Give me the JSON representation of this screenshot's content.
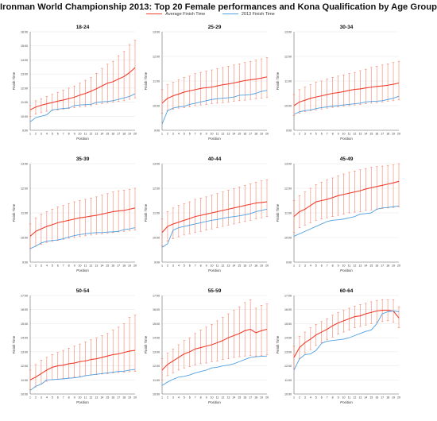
{
  "title": "Ironman World Championship 2013: Top 20 Female performances and Kona Qualification by Age Group",
  "legend": {
    "avg": "Average Finish Time",
    "fin": "2013 Finish Time"
  },
  "colors": {
    "avg": "#f03e2e",
    "fin": "#4f9fe0",
    "err": "#f4836a",
    "axis": "#666666",
    "grid": "#e6e6e6"
  },
  "chart_data": [
    {
      "type": "line",
      "title": "18-24",
      "xlabel": "Position",
      "ylabel": "Finish Time",
      "x": [
        1,
        2,
        3,
        4,
        5,
        6,
        7,
        8,
        9,
        10,
        11,
        12,
        13,
        14,
        15,
        16,
        17,
        18,
        19,
        20
      ],
      "yticks": [
        "9:00",
        "10:00",
        "11:00",
        "12:00",
        "13:00",
        "14:00",
        "15:00",
        "16:00"
      ],
      "ylim": [
        9,
        16
      ],
      "series": [
        {
          "name": "Average Finish Time",
          "values": [
            10.45,
            10.65,
            10.78,
            10.88,
            10.97,
            11.07,
            11.15,
            11.25,
            11.35,
            11.5,
            11.62,
            11.77,
            11.95,
            12.15,
            12.35,
            12.45,
            12.65,
            12.82,
            13.1,
            13.45
          ]
        },
        {
          "name": "2013 Finish Time",
          "values": [
            9.6,
            9.9,
            10.0,
            10.1,
            10.45,
            10.5,
            10.55,
            10.58,
            10.75,
            10.8,
            10.82,
            10.84,
            10.98,
            11.02,
            11.05,
            11.1,
            11.2,
            11.3,
            11.4,
            11.6
          ]
        }
      ],
      "error_low": [
        10.0,
        10.15,
        10.25,
        10.35,
        10.4,
        10.45,
        10.5,
        10.55,
        10.6,
        10.65,
        10.7,
        10.75,
        10.85,
        10.9,
        10.95,
        11.0,
        11.05,
        11.1,
        11.2,
        11.3
      ],
      "error_high": [
        10.75,
        11.1,
        11.25,
        11.4,
        11.55,
        11.7,
        11.85,
        12.0,
        12.15,
        12.35,
        12.55,
        12.75,
        13.05,
        13.4,
        13.7,
        13.9,
        14.3,
        14.6,
        15.1,
        15.4
      ]
    },
    {
      "type": "line",
      "title": "25-29",
      "xlabel": "Position",
      "ylabel": "Finish Time",
      "x": [
        1,
        2,
        3,
        4,
        5,
        6,
        7,
        8,
        9,
        10,
        11,
        12,
        13,
        14,
        15,
        16,
        17,
        18,
        19,
        20
      ],
      "yticks": [
        "9:00",
        "10:00",
        "11:00",
        "12:00",
        "13:00"
      ],
      "ylim": [
        9,
        13
      ],
      "series": [
        {
          "name": "Average Finish Time",
          "values": [
            10.1,
            10.3,
            10.4,
            10.47,
            10.55,
            10.6,
            10.65,
            10.7,
            10.73,
            10.75,
            10.8,
            10.85,
            10.88,
            10.92,
            10.97,
            11.02,
            11.05,
            11.08,
            11.12,
            11.17
          ]
        },
        {
          "name": "2013 Finish Time",
          "values": [
            9.25,
            9.8,
            9.9,
            9.95,
            9.97,
            10.05,
            10.1,
            10.15,
            10.2,
            10.25,
            10.28,
            10.3,
            10.32,
            10.35,
            10.42,
            10.43,
            10.45,
            10.5,
            10.58,
            10.62
          ]
        }
      ],
      "error_low": [
        9.7,
        9.8,
        9.85,
        9.9,
        9.92,
        9.95,
        10.0,
        10.03,
        10.05,
        10.08,
        10.1,
        10.12,
        10.15,
        10.18,
        10.2,
        10.22,
        10.25,
        10.28,
        10.3,
        10.33
      ],
      "error_high": [
        10.65,
        10.85,
        10.95,
        11.05,
        11.15,
        11.2,
        11.3,
        11.35,
        11.4,
        11.45,
        11.5,
        11.55,
        11.6,
        11.65,
        11.7,
        11.75,
        11.8,
        11.85,
        11.9,
        11.95
      ]
    },
    {
      "type": "line",
      "title": "30-34",
      "xlabel": "Position",
      "ylabel": "Finish Time",
      "x": [
        1,
        2,
        3,
        4,
        5,
        6,
        7,
        8,
        9,
        10,
        11,
        12,
        13,
        14,
        15,
        16,
        17,
        18,
        19,
        20
      ],
      "yticks": [
        "9:00",
        "10:00",
        "11:00",
        "12:00",
        "13:00"
      ],
      "ylim": [
        9,
        13
      ],
      "series": [
        {
          "name": "Average Finish Time",
          "values": [
            10.0,
            10.15,
            10.22,
            10.3,
            10.35,
            10.4,
            10.45,
            10.5,
            10.53,
            10.57,
            10.62,
            10.66,
            10.68,
            10.72,
            10.75,
            10.78,
            10.8,
            10.83,
            10.87,
            10.92
          ]
        },
        {
          "name": "2013 Finish Time",
          "values": [
            9.65,
            9.75,
            9.8,
            9.82,
            9.88,
            9.92,
            9.95,
            9.98,
            10.0,
            10.03,
            10.05,
            10.08,
            10.1,
            10.15,
            10.17,
            10.18,
            10.2,
            10.25,
            10.3,
            10.38
          ]
        }
      ],
      "error_low": [
        9.6,
        9.7,
        9.75,
        9.8,
        9.83,
        9.86,
        9.9,
        9.93,
        9.95,
        9.98,
        10.0,
        10.03,
        10.05,
        10.08,
        10.1,
        10.12,
        10.15,
        10.18,
        10.2,
        10.23
      ],
      "error_high": [
        10.45,
        10.65,
        10.75,
        10.85,
        10.95,
        11.0,
        11.08,
        11.15,
        11.2,
        11.25,
        11.3,
        11.35,
        11.42,
        11.48,
        11.55,
        11.6,
        11.65,
        11.7,
        11.75,
        11.8
      ]
    },
    {
      "type": "line",
      "title": "35-39",
      "xlabel": "Position",
      "ylabel": "Finish Time",
      "x": [
        1,
        2,
        3,
        4,
        5,
        6,
        7,
        8,
        9,
        10,
        11,
        12,
        13,
        14,
        15,
        16,
        17,
        18,
        19,
        20
      ],
      "yticks": [
        "9:00",
        "10:00",
        "11:00",
        "12:00",
        "13:00"
      ],
      "ylim": [
        9,
        13
      ],
      "series": [
        {
          "name": "Average Finish Time",
          "values": [
            10.05,
            10.25,
            10.35,
            10.45,
            10.52,
            10.6,
            10.65,
            10.7,
            10.75,
            10.8,
            10.83,
            10.87,
            10.9,
            10.95,
            11.0,
            11.05,
            11.08,
            11.1,
            11.15,
            11.2
          ]
        },
        {
          "name": "2013 Finish Time",
          "values": [
            9.55,
            9.65,
            9.78,
            9.85,
            9.88,
            9.9,
            9.95,
            10.02,
            10.08,
            10.12,
            10.15,
            10.18,
            10.2,
            10.2,
            10.22,
            10.23,
            10.25,
            10.32,
            10.35,
            10.4
          ]
        }
      ],
      "error_low": [
        9.55,
        9.65,
        9.72,
        9.8,
        9.84,
        9.88,
        9.93,
        9.97,
        10.0,
        10.04,
        10.07,
        10.1,
        10.13,
        10.15,
        10.18,
        10.2,
        10.23,
        10.25,
        10.28,
        10.3
      ],
      "error_high": [
        10.55,
        10.8,
        10.95,
        11.05,
        11.15,
        11.25,
        11.3,
        11.38,
        11.45,
        11.5,
        11.55,
        11.6,
        11.65,
        11.72,
        11.78,
        11.85,
        11.9,
        11.92,
        11.96,
        12.0
      ]
    },
    {
      "type": "line",
      "title": "40-44",
      "xlabel": "Position",
      "ylabel": "Finish Time",
      "x": [
        1,
        2,
        3,
        4,
        5,
        6,
        7,
        8,
        9,
        10,
        11,
        12,
        13,
        14,
        15,
        16,
        17,
        18,
        19,
        20
      ],
      "yticks": [
        "9:00",
        "10:00",
        "11:00",
        "12:00",
        "13:00"
      ],
      "ylim": [
        9,
        13
      ],
      "series": [
        {
          "name": "Average Finish Time",
          "values": [
            10.2,
            10.45,
            10.55,
            10.62,
            10.7,
            10.77,
            10.85,
            10.9,
            10.95,
            11.0,
            11.05,
            11.1,
            11.15,
            11.2,
            11.25,
            11.3,
            11.35,
            11.4,
            11.42,
            11.45
          ]
        },
        {
          "name": "2013 Finish Time",
          "values": [
            9.6,
            9.75,
            10.3,
            10.4,
            10.45,
            10.5,
            10.55,
            10.6,
            10.65,
            10.7,
            10.73,
            10.78,
            10.82,
            10.85,
            10.88,
            10.92,
            10.97,
            11.05,
            11.1,
            11.15
          ]
        }
      ],
      "error_low": [
        9.65,
        9.85,
        9.95,
        10.03,
        10.1,
        10.15,
        10.2,
        10.25,
        10.3,
        10.35,
        10.4,
        10.45,
        10.5,
        10.55,
        10.6,
        10.65,
        10.7,
        10.75,
        10.8,
        10.85
      ],
      "error_high": [
        10.75,
        11.05,
        11.2,
        11.3,
        11.38,
        11.45,
        11.55,
        11.6,
        11.65,
        11.72,
        11.78,
        11.85,
        11.92,
        11.98,
        12.05,
        12.12,
        12.18,
        12.25,
        12.3,
        12.35
      ]
    },
    {
      "type": "line",
      "title": "45-49",
      "xlabel": "Position",
      "ylabel": "Finish Time",
      "x": [
        1,
        2,
        3,
        4,
        5,
        6,
        7,
        8,
        9,
        10,
        11,
        12,
        13,
        14,
        15,
        16,
        17,
        18,
        19,
        20
      ],
      "yticks": [
        "9:00",
        "10:00",
        "11:00",
        "12:00",
        "13:00"
      ],
      "ylim": [
        9,
        13
      ],
      "series": [
        {
          "name": "Average Finish Time",
          "values": [
            10.85,
            11.05,
            11.15,
            11.3,
            11.45,
            11.5,
            11.55,
            11.62,
            11.7,
            11.75,
            11.8,
            11.85,
            11.9,
            11.97,
            12.02,
            12.07,
            12.12,
            12.17,
            12.22,
            12.28
          ]
        },
        {
          "name": "2013 Finish Time",
          "values": [
            10.05,
            10.15,
            10.25,
            10.35,
            10.45,
            10.55,
            10.65,
            10.7,
            10.72,
            10.75,
            10.8,
            10.85,
            10.95,
            10.97,
            11.0,
            11.15,
            11.2,
            11.22,
            11.25,
            11.28
          ]
        }
      ],
      "error_low": [
        10.2,
        10.4,
        10.5,
        10.6,
        10.7,
        10.75,
        10.8,
        10.85,
        10.9,
        10.95,
        11.0,
        11.03,
        11.05,
        11.1,
        11.12,
        11.15,
        11.18,
        11.2,
        11.22,
        11.25
      ],
      "error_high": [
        11.5,
        11.7,
        11.85,
        12.0,
        12.15,
        12.25,
        12.35,
        12.42,
        12.5,
        12.58,
        12.65,
        12.7,
        12.75,
        12.8,
        12.85,
        12.88,
        12.9,
        12.93,
        12.95,
        13.0
      ]
    },
    {
      "type": "line",
      "title": "50-54",
      "xlabel": "Position",
      "ylabel": "Finish Time",
      "x": [
        1,
        2,
        3,
        4,
        5,
        6,
        7,
        8,
        9,
        10,
        11,
        12,
        13,
        14,
        15,
        16,
        17,
        18,
        19,
        20
      ],
      "yticks": [
        "10:00",
        "11:00",
        "12:00",
        "13:00",
        "14:00",
        "15:00",
        "16:00",
        "17:00"
      ],
      "ylim": [
        10,
        17
      ],
      "series": [
        {
          "name": "Average Finish Time",
          "values": [
            11.0,
            11.2,
            11.45,
            11.7,
            11.9,
            12.0,
            12.05,
            12.15,
            12.2,
            12.3,
            12.35,
            12.45,
            12.5,
            12.6,
            12.7,
            12.8,
            12.85,
            12.95,
            13.05,
            13.1
          ]
        },
        {
          "name": "2013 Finish Time",
          "values": [
            10.25,
            10.55,
            10.7,
            11.0,
            11.02,
            11.05,
            11.08,
            11.12,
            11.15,
            11.2,
            11.3,
            11.35,
            11.4,
            11.45,
            11.5,
            11.55,
            11.6,
            11.62,
            11.7,
            11.75
          ]
        }
      ],
      "error_low": [
        10.3,
        10.5,
        10.7,
        10.9,
        11.0,
        11.05,
        11.1,
        11.15,
        11.2,
        11.25,
        11.3,
        11.35,
        11.38,
        11.42,
        11.45,
        11.5,
        11.52,
        11.55,
        11.58,
        11.6
      ],
      "error_high": [
        11.7,
        12.1,
        12.4,
        12.6,
        12.8,
        12.95,
        13.1,
        13.25,
        13.4,
        13.55,
        13.7,
        13.85,
        14.0,
        14.15,
        14.3,
        14.55,
        14.75,
        15.0,
        15.45,
        15.6
      ]
    },
    {
      "type": "line",
      "title": "55-59",
      "xlabel": "Position",
      "ylabel": "Finish Time",
      "x": [
        1,
        2,
        3,
        4,
        5,
        6,
        7,
        8,
        9,
        10,
        11,
        12,
        13,
        14,
        15,
        16,
        17,
        18,
        19,
        20
      ],
      "yticks": [
        "10:00",
        "11:00",
        "12:00",
        "13:00",
        "14:00",
        "15:00",
        "16:00",
        "17:00"
      ],
      "ylim": [
        10,
        17
      ],
      "series": [
        {
          "name": "Average Finish Time",
          "values": [
            11.7,
            12.1,
            12.35,
            12.6,
            12.85,
            13.0,
            13.2,
            13.3,
            13.4,
            13.5,
            13.65,
            13.8,
            14.0,
            14.15,
            14.3,
            14.5,
            14.6,
            14.35,
            14.5,
            14.6
          ]
        },
        {
          "name": "2013 Finish Time",
          "values": [
            10.6,
            10.85,
            11.05,
            11.2,
            11.25,
            11.35,
            11.5,
            11.6,
            11.7,
            11.85,
            11.9,
            12.0,
            12.05,
            12.15,
            12.3,
            12.45,
            12.6,
            12.65,
            12.68,
            12.7
          ]
        }
      ],
      "error_low": [
        11.0,
        11.3,
        11.5,
        11.7,
        11.85,
        11.95,
        12.05,
        12.15,
        12.2,
        12.3,
        12.35,
        12.45,
        12.5,
        12.6,
        12.65,
        12.7,
        12.75,
        12.7,
        12.75,
        12.8
      ],
      "error_high": [
        12.5,
        12.9,
        13.2,
        13.5,
        13.8,
        14.0,
        14.3,
        14.55,
        14.75,
        14.95,
        15.2,
        15.45,
        15.7,
        15.95,
        16.2,
        16.5,
        16.7,
        16.1,
        16.3,
        16.4
      ]
    },
    {
      "type": "line",
      "title": "60-64",
      "xlabel": "Position",
      "ylabel": "Finish Time",
      "x": [
        1,
        2,
        3,
        4,
        5,
        6,
        7,
        8,
        9,
        10,
        11,
        12,
        13,
        14,
        15,
        16,
        17,
        18,
        19,
        20
      ],
      "yticks": [
        "10:00",
        "11:00",
        "12:00",
        "13:00",
        "14:00",
        "15:00",
        "16:00",
        "17:00"
      ],
      "ylim": [
        10,
        17
      ],
      "series": [
        {
          "name": "Average Finish Time",
          "values": [
            12.6,
            13.3,
            13.65,
            13.9,
            14.2,
            14.4,
            14.6,
            14.85,
            15.05,
            15.2,
            15.35,
            15.5,
            15.55,
            15.7,
            15.8,
            15.9,
            15.95,
            15.95,
            15.9,
            15.4
          ]
        },
        {
          "name": "2013 Finish Time",
          "values": [
            11.7,
            12.5,
            12.8,
            12.85,
            13.1,
            13.6,
            13.75,
            13.8,
            13.85,
            13.9,
            14.0,
            14.15,
            14.3,
            14.45,
            14.55,
            15.0,
            15.7,
            15.85,
            15.9,
            15.85
          ]
        }
      ],
      "error_low": [
        11.8,
        12.5,
        12.9,
        13.15,
        13.45,
        13.65,
        13.85,
        14.05,
        14.25,
        14.4,
        14.55,
        14.7,
        14.8,
        14.9,
        15.0,
        15.1,
        15.15,
        15.2,
        15.1,
        14.7
      ],
      "error_high": [
        13.4,
        14.1,
        14.4,
        14.7,
        14.95,
        15.15,
        15.35,
        15.6,
        15.8,
        15.95,
        16.1,
        16.25,
        16.35,
        16.45,
        16.55,
        16.65,
        16.7,
        16.7,
        16.7,
        16.2
      ]
    }
  ]
}
